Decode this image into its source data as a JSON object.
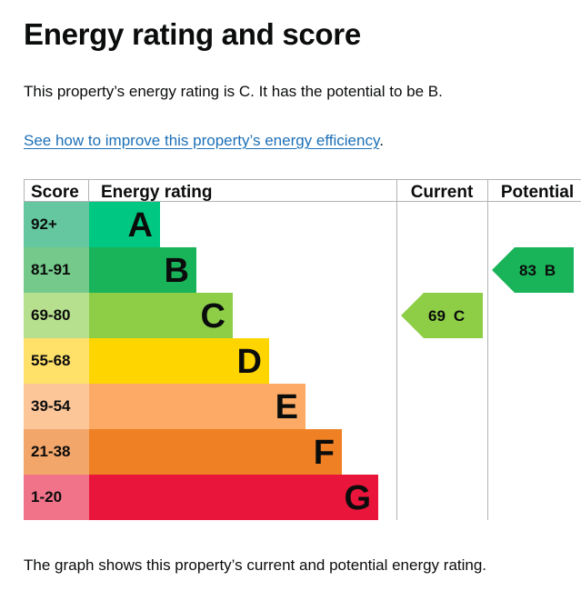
{
  "page": {
    "heading": "Energy rating and score",
    "summary": "This property’s energy rating is C. It has the potential to be B.",
    "improve_link": "See how to improve this property’s energy efficiency",
    "improve_link_trailer": ".",
    "caption": "The graph shows this property’s current and potential energy rating."
  },
  "chart_data": {
    "type": "bar",
    "headers": {
      "score": "Score",
      "rating": "Energy rating",
      "current": "Current",
      "potential": "Potential"
    },
    "bands": [
      {
        "range": "92+",
        "letter": "A",
        "color": "#00c781",
        "score_bg": "#64c7a0"
      },
      {
        "range": "81-91",
        "letter": "B",
        "color": "#19b459",
        "score_bg": "#75c98a"
      },
      {
        "range": "69-80",
        "letter": "C",
        "color": "#8dce46",
        "score_bg": "#b7e08e"
      },
      {
        "range": "55-68",
        "letter": "D",
        "color": "#ffd500",
        "score_bg": "#ffe16a"
      },
      {
        "range": "39-54",
        "letter": "E",
        "color": "#fcaa65",
        "score_bg": "#fdc699"
      },
      {
        "range": "21-38",
        "letter": "F",
        "color": "#ef8023",
        "score_bg": "#f3a66a"
      },
      {
        "range": "1-20",
        "letter": "G",
        "color": "#e9153b",
        "score_bg": "#f0738a"
      }
    ],
    "current": {
      "score": "69",
      "letter": "C",
      "color": "#8dce46"
    },
    "potential": {
      "score": "83",
      "letter": "B",
      "color": "#19b459"
    }
  }
}
